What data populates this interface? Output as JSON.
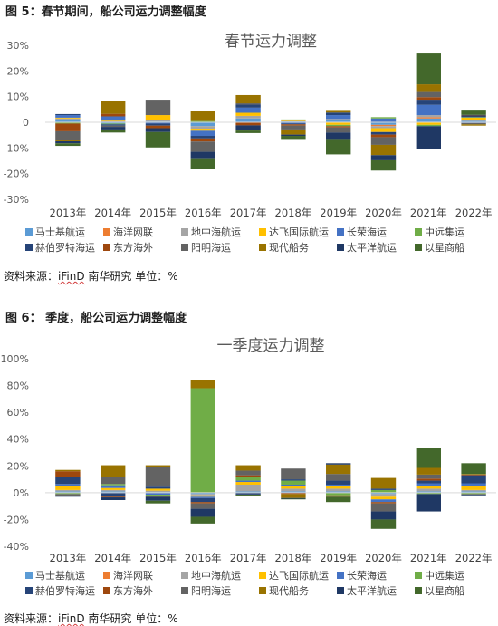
{
  "figure5": {
    "caption": "图 5：春节期间，船公司运力调整幅度",
    "source_prefix": "资料来源：",
    "source_ifind": "iFinD",
    "source_suffix": " 南华研究 单位：%"
  },
  "figure6": {
    "caption": "图 6：    季度，船公司运力调整幅度",
    "source_prefix": "资料来源：",
    "source_ifind": "iFinD",
    "source_suffix": " 南华研究 单位：%"
  },
  "colors": {
    "马士基航运": "#5b9bd5",
    "海洋网联": "#ed7d31",
    "地中海航运": "#a5a5a5",
    "达飞国际航运": "#ffc000",
    "长荣海运": "#4472c4",
    "中远集运": "#70ad47",
    "赫伯罗特海运": "#264478",
    "东方海外": "#9e480e",
    "阳明海运": "#636363",
    "现代船务": "#997300",
    "太平洋航运": "#1f3864",
    "以星商船": "#43682b"
  },
  "chart_data": [
    {
      "type": "bar",
      "stacked": true,
      "title": "春节运力调整",
      "categories": [
        "2013年",
        "2014年",
        "2015年",
        "2016年",
        "2017年",
        "2018年",
        "2019年",
        "2020年",
        "2021年",
        "2022年"
      ],
      "ylim": [
        -30,
        30
      ],
      "yticks": [
        "30%",
        "20%",
        "10%",
        "0",
        "-10%",
        "-20%",
        "-30%"
      ],
      "ytick_values": [
        30,
        20,
        10,
        0,
        -10,
        -20,
        -30
      ],
      "grid": false,
      "legend_position": "bottom",
      "series": [
        {
          "name": "马士基航运",
          "values": [
            1.0,
            -0.5,
            0.3,
            -1.5,
            1.5,
            0.3,
            1.0,
            -1.0,
            1.5,
            0.5
          ]
        },
        {
          "name": "海洋网联",
          "values": [
            0,
            0,
            0,
            0,
            0,
            0,
            0,
            -0.5,
            0.5,
            0
          ]
        },
        {
          "name": "地中海航运",
          "values": [
            0.5,
            0.5,
            0.5,
            -1.0,
            1.0,
            0.2,
            0.3,
            -0.8,
            0.8,
            0.3
          ]
        },
        {
          "name": "达飞国际航运",
          "values": [
            0.3,
            0.3,
            2.0,
            -0.8,
            1.2,
            0.3,
            -1.0,
            -1.5,
            -1.0,
            1.0
          ]
        },
        {
          "name": "长荣海运",
          "values": [
            1.0,
            1.5,
            -0.5,
            -2.0,
            2.0,
            -0.5,
            1.5,
            1.5,
            4.0,
            -0.3
          ]
        },
        {
          "name": "中远集运",
          "values": [
            -0.5,
            -0.3,
            0,
            0.5,
            0,
            0.3,
            -0.5,
            0.5,
            -0.5,
            0.2
          ]
        },
        {
          "name": "赫伯罗特海运",
          "values": [
            0.4,
            -0.5,
            -0.8,
            -1.0,
            1.2,
            -0.3,
            1.0,
            -1.0,
            2.0,
            0.5
          ]
        },
        {
          "name": "东方海外",
          "values": [
            -3.0,
            1.0,
            -1.0,
            -1.2,
            -1.2,
            -0.5,
            -0.5,
            -1.0,
            1.0,
            0.1
          ]
        },
        {
          "name": "阳明海运",
          "values": [
            -3.5,
            -0.5,
            6.0,
            -4.0,
            0.5,
            -1.5,
            -2.0,
            -3.0,
            2.0,
            -0.5
          ]
        },
        {
          "name": "现代船务",
          "values": [
            -0.4,
            5.0,
            0,
            4.0,
            3.2,
            -2.0,
            1.0,
            -4.0,
            3.0,
            -0.5
          ]
        },
        {
          "name": "太平洋航运",
          "values": [
            -0.8,
            -1.0,
            -1.5,
            -2.5,
            -2.0,
            -0.5,
            -2.5,
            -2.0,
            -9.0,
            0.3
          ]
        },
        {
          "name": "以星商船",
          "values": [
            -1.0,
            -1.2,
            -6.0,
            -4.0,
            -1.0,
            -1.2,
            -6.0,
            -4.0,
            12.0,
            2.0
          ]
        }
      ]
    },
    {
      "type": "bar",
      "stacked": true,
      "title": "一季度运力调整",
      "categories": [
        "2013年",
        "2014年",
        "2015年",
        "2016年",
        "2017年",
        "2018年",
        "2019年",
        "2020年",
        "2021年",
        "2022年"
      ],
      "ylim": [
        -40,
        100
      ],
      "yticks": [
        "100%",
        "80%",
        "60%",
        "40%",
        "20%",
        "0%",
        "-20%",
        "-40%"
      ],
      "ytick_values": [
        100,
        80,
        60,
        40,
        20,
        0,
        -20,
        -40
      ],
      "grid": false,
      "legend_position": "bottom",
      "series": [
        {
          "name": "马士基航运",
          "values": [
            1.0,
            1.0,
            0.5,
            -1.0,
            1.0,
            1.0,
            1.0,
            -1.0,
            1.0,
            1.0
          ]
        },
        {
          "name": "海洋网联",
          "values": [
            0,
            0,
            0,
            0,
            0,
            0,
            0,
            0,
            0,
            0
          ]
        },
        {
          "name": "地中海航运",
          "values": [
            1.0,
            1.0,
            1.0,
            -1.0,
            5.0,
            2.0,
            2.0,
            -2.0,
            2.0,
            1.0
          ]
        },
        {
          "name": "达飞国际航运",
          "values": [
            3.0,
            1.5,
            1.5,
            -1.0,
            2.0,
            2.0,
            2.0,
            -2.0,
            2.0,
            3.0
          ]
        },
        {
          "name": "长荣海运",
          "values": [
            1.5,
            2.0,
            -1.5,
            -1.0,
            1.0,
            1.0,
            1.0,
            -2.0,
            2.0,
            2.0
          ]
        },
        {
          "name": "中远集运",
          "values": [
            -1.0,
            1.0,
            -1.0,
            78.0,
            3.0,
            3.0,
            -2.0,
            2.0,
            -1.0,
            -1.0
          ]
        },
        {
          "name": "赫伯罗特海运",
          "values": [
            5.0,
            -3.0,
            1.5,
            -3.0,
            -1.0,
            1.0,
            3.0,
            1.0,
            2.0,
            6.0
          ]
        },
        {
          "name": "东方海外",
          "values": [
            4.5,
            -0.5,
            -0.5,
            -1.0,
            1.0,
            -1.0,
            -1.0,
            -1.0,
            1.5,
            0.5
          ]
        },
        {
          "name": "阳明海运",
          "values": [
            -1.5,
            5.0,
            15.0,
            -4.0,
            3.5,
            8.0,
            5.0,
            -6.0,
            3.0,
            -0.5
          ]
        },
        {
          "name": "现代船务",
          "values": [
            1.0,
            9.0,
            1.0,
            6.0,
            4.0,
            -3.0,
            7.0,
            8.0,
            5.0,
            0.5
          ]
        },
        {
          "name": "太平洋航运",
          "values": [
            -0.5,
            -2.0,
            -3.0,
            -6.0,
            -0.5,
            -0.5,
            1.0,
            -6.0,
            -13.0,
            -0.5
          ]
        },
        {
          "name": "以星商船",
          "values": [
            0,
            0,
            -2.0,
            -5.0,
            -1.0,
            -0.5,
            -4.0,
            -7.0,
            15.0,
            8.0
          ]
        }
      ]
    }
  ]
}
